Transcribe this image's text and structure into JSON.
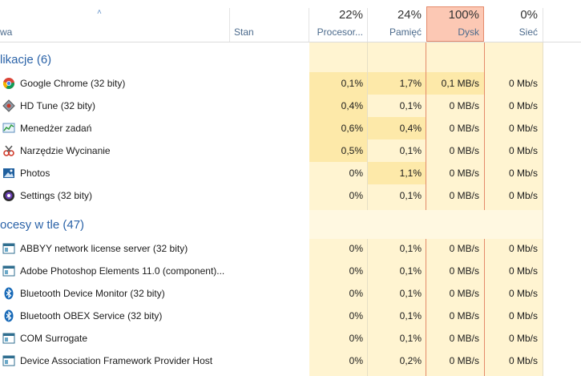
{
  "header": {
    "sort_arrow": "˄",
    "name_col": "wa",
    "status_col": "Stan",
    "cpu": {
      "pct": "22%",
      "label": "Procesor..."
    },
    "mem": {
      "pct": "24%",
      "label": "Pamięć"
    },
    "disk": {
      "pct": "100%",
      "label": "Dysk"
    },
    "net": {
      "pct": "0%",
      "label": "Sieć"
    }
  },
  "groups": {
    "apps": {
      "title": "likacje (6)"
    },
    "background": {
      "title": "ocesy w tle (47)"
    }
  },
  "apps": [
    {
      "name": "Google Chrome (32 bity)",
      "icon": "chrome-icon",
      "cpu": "0,1%",
      "mem": "1,7%",
      "disk": "0,1 MB/s",
      "net": "0 Mb/s"
    },
    {
      "name": "HD Tune (32 bity)",
      "icon": "hdtune-icon",
      "cpu": "0,4%",
      "mem": "0,1%",
      "disk": "0 MB/s",
      "net": "0 Mb/s"
    },
    {
      "name": "Menedżer zadań",
      "icon": "task-manager-icon",
      "cpu": "0,6%",
      "mem": "0,4%",
      "disk": "0 MB/s",
      "net": "0 Mb/s"
    },
    {
      "name": "Narzędzie Wycinanie",
      "icon": "snipping-tool-icon",
      "cpu": "0,5%",
      "mem": "0,1%",
      "disk": "0 MB/s",
      "net": "0 Mb/s"
    },
    {
      "name": "Photos",
      "icon": "photos-icon",
      "cpu": "0%",
      "mem": "1,1%",
      "disk": "0 MB/s",
      "net": "0 Mb/s"
    },
    {
      "name": "Settings (32 bity)",
      "icon": "settings-icon",
      "cpu": "0%",
      "mem": "0,1%",
      "disk": "0 MB/s",
      "net": "0 Mb/s"
    }
  ],
  "background": [
    {
      "name": "ABBYY network license server (32 bity)",
      "icon": "service-window-icon",
      "cpu": "0%",
      "mem": "0,1%",
      "disk": "0 MB/s",
      "net": "0 Mb/s"
    },
    {
      "name": "Adobe Photoshop Elements 11.0 (component)...",
      "icon": "service-window-icon",
      "cpu": "0%",
      "mem": "0,1%",
      "disk": "0 MB/s",
      "net": "0 Mb/s"
    },
    {
      "name": "Bluetooth Device Monitor (32 bity)",
      "icon": "bluetooth-icon",
      "cpu": "0%",
      "mem": "0,1%",
      "disk": "0 MB/s",
      "net": "0 Mb/s"
    },
    {
      "name": "Bluetooth OBEX Service (32 bity)",
      "icon": "bluetooth-icon",
      "cpu": "0%",
      "mem": "0,1%",
      "disk": "0 MB/s",
      "net": "0 Mb/s"
    },
    {
      "name": "COM Surrogate",
      "icon": "service-window-icon",
      "cpu": "0%",
      "mem": "0,1%",
      "disk": "0 MB/s",
      "net": "0 Mb/s"
    },
    {
      "name": "Device Association Framework Provider Host",
      "icon": "service-window-icon",
      "cpu": "0%",
      "mem": "0,2%",
      "disk": "0 MB/s",
      "net": "0 Mb/s"
    }
  ],
  "colors": {
    "light_cell": "#fff4d1",
    "medium_cell": "#fde9a9",
    "disk_header": "#fcc8b4",
    "group_title": "#2b63a8"
  }
}
